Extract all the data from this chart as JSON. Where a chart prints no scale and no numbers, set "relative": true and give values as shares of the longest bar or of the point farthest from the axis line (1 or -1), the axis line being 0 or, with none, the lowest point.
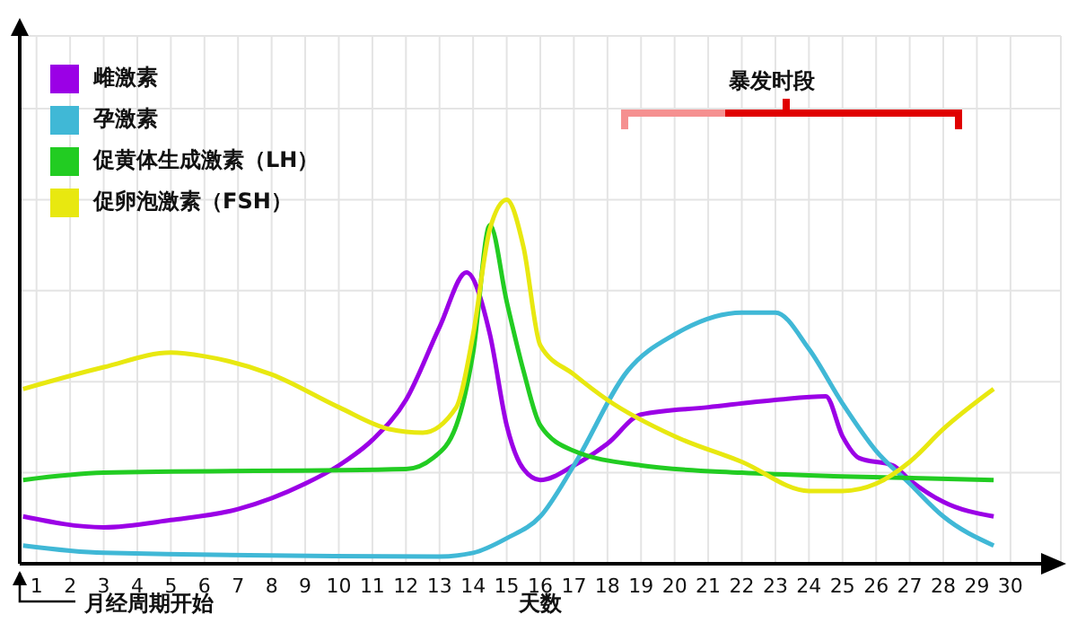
{
  "chart_data": {
    "type": "line",
    "relative": true,
    "xlabel": "天数",
    "annotations": [
      "暴发时段",
      "月经周期开始"
    ],
    "xlim": [
      0.5,
      31.5
    ],
    "xticks": [
      1,
      2,
      3,
      4,
      5,
      6,
      7,
      8,
      9,
      10,
      11,
      12,
      13,
      14,
      15,
      16,
      17,
      18,
      19,
      20,
      21,
      22,
      23,
      24,
      25,
      26,
      27,
      28,
      29,
      30
    ],
    "grid": true,
    "legend": "top left",
    "marker": "none",
    "line_style": "solid",
    "series": [
      {
        "name": "雌激素",
        "color": "#9b00e6",
        "x": [
          0.6,
          3,
          5,
          7,
          9,
          10,
          11,
          12,
          13,
          13.8,
          14.5,
          15,
          15.5,
          16,
          17,
          18,
          19,
          21,
          23,
          24.5,
          25,
          25.5,
          26.5,
          27,
          28,
          29.5
        ],
        "values": [
          0.13,
          0.1,
          0.12,
          0.15,
          0.22,
          0.27,
          0.34,
          0.45,
          0.65,
          0.8,
          0.63,
          0.38,
          0.26,
          0.23,
          0.27,
          0.33,
          0.41,
          0.43,
          0.45,
          0.46,
          0.35,
          0.29,
          0.27,
          0.23,
          0.17,
          0.13
        ]
      },
      {
        "name": "孕激素",
        "color": "#40b8d6",
        "x": [
          0.6,
          3,
          13,
          14,
          15,
          16,
          17,
          18.6,
          20,
          22,
          23,
          24,
          25,
          26,
          27,
          28,
          29.5
        ],
        "values": [
          0.05,
          0.03,
          0.02,
          0.03,
          0.07,
          0.13,
          0.27,
          0.53,
          0.63,
          0.69,
          0.69,
          0.59,
          0.44,
          0.31,
          0.22,
          0.13,
          0.05
        ]
      },
      {
        "name": "促黄体生成激素（LH）",
        "color": "#22cc22",
        "x": [
          0.6,
          3,
          12,
          12.8,
          13.5,
          14,
          14.5,
          15,
          15.5,
          16,
          17,
          19,
          22,
          25,
          29.5
        ],
        "values": [
          0.23,
          0.25,
          0.26,
          0.29,
          0.38,
          0.58,
          0.93,
          0.72,
          0.53,
          0.38,
          0.31,
          0.27,
          0.25,
          0.24,
          0.23
        ]
      },
      {
        "name": "促卵泡激素（FSH）",
        "color": "#e8e810",
        "x": [
          0.6,
          3,
          5,
          6,
          8,
          10,
          11.5,
          12.5,
          13.5,
          14,
          14.5,
          15,
          15.5,
          16,
          17,
          18,
          20,
          22,
          24,
          25,
          26,
          27,
          28,
          29.5
        ],
        "values": [
          0.48,
          0.54,
          0.58,
          0.57,
          0.52,
          0.43,
          0.37,
          0.36,
          0.43,
          0.63,
          0.92,
          1,
          0.87,
          0.6,
          0.52,
          0.45,
          0.35,
          0.28,
          0.2,
          0.2,
          0.22,
          0.28,
          0.37,
          0.48
        ]
      }
    ]
  }
}
